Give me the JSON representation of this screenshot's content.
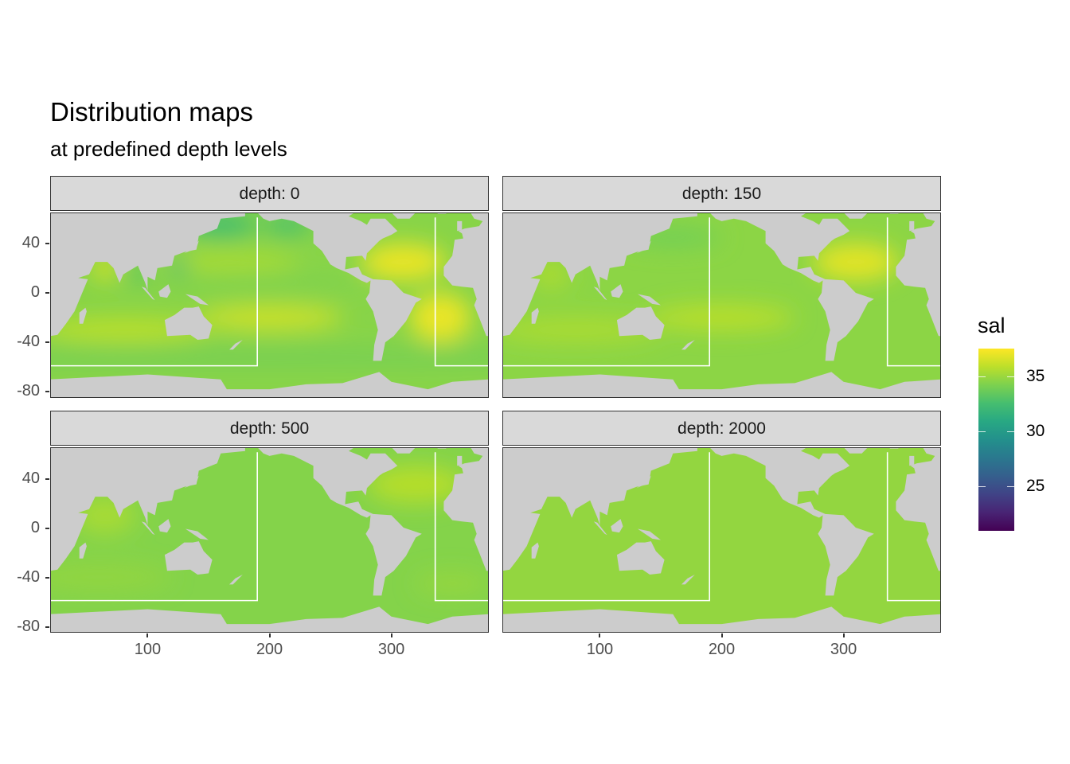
{
  "title": "Distribution maps",
  "subtitle": "at predefined depth levels",
  "chart_data": {
    "type": "heatmap",
    "title": "Distribution maps",
    "subtitle": "at predefined depth levels",
    "xlabel": "",
    "ylabel": "",
    "xlim": [
      20,
      380
    ],
    "ylim": [
      -85,
      65
    ],
    "x_ticks": [
      "100",
      "200",
      "300"
    ],
    "x_tick_values": [
      100,
      200,
      300
    ],
    "y_ticks": [
      "40",
      "0",
      "-40",
      "-80"
    ],
    "y_tick_values": [
      40,
      0,
      -40,
      -80
    ],
    "grid": false,
    "land_color": "#cccccc",
    "region_box_color": "#ffffff",
    "region_boxes": [
      {
        "lon": [
          20,
          190
        ],
        "lat": [
          -59,
          61
        ]
      },
      {
        "lon": [
          336,
          380
        ],
        "lat": [
          -59,
          61
        ]
      }
    ],
    "legend": {
      "title": "sal",
      "position": "right",
      "colormap": "viridis",
      "limits": [
        21,
        37.5
      ],
      "ticks": [
        "35",
        "30",
        "25"
      ],
      "tick_values": [
        35,
        30,
        25
      ]
    },
    "facets": [
      {
        "label": "depth: 0",
        "base_sal": 34.5,
        "fields": [
          {
            "lon": 80,
            "lat": -30,
            "sal": 35.8
          },
          {
            "lon": 200,
            "lat": -20,
            "sal": 36.3
          },
          {
            "lon": 310,
            "lat": 25,
            "sal": 37.0
          },
          {
            "lon": 340,
            "lat": -20,
            "sal": 37.0
          },
          {
            "lon": 165,
            "lat": 25,
            "sal": 35.4
          },
          {
            "lon": 65,
            "lat": 20,
            "sal": 36.5
          },
          {
            "lon": 200,
            "lat": 8,
            "sal": 34.2
          },
          {
            "lon": 160,
            "lat": 55,
            "sal": 32.5
          },
          {
            "lon": 215,
            "lat": 55,
            "sal": 32.6
          },
          {
            "lon": 125,
            "lat": 22,
            "sal": 32.0
          },
          {
            "lon": 92,
            "lat": 16,
            "sal": 32.5
          },
          {
            "lon": 200,
            "lat": -52,
            "sal": 34.0
          }
        ]
      },
      {
        "label": "depth: 150",
        "base_sal": 34.6,
        "fields": [
          {
            "lon": 310,
            "lat": 25,
            "sal": 36.8
          },
          {
            "lon": 200,
            "lat": -20,
            "sal": 35.8
          },
          {
            "lon": 80,
            "lat": -30,
            "sal": 35.4
          },
          {
            "lon": 160,
            "lat": 45,
            "sal": 33.9
          },
          {
            "lon": 60,
            "lat": 15,
            "sal": 35.4
          }
        ]
      },
      {
        "label": "depth: 500",
        "base_sal": 34.4,
        "fields": [
          {
            "lon": 320,
            "lat": 35,
            "sal": 35.7
          },
          {
            "lon": 65,
            "lat": 10,
            "sal": 35.3
          },
          {
            "lon": 60,
            "lat": -40,
            "sal": 34.8
          },
          {
            "lon": 350,
            "lat": -45,
            "sal": 34.9
          }
        ]
      },
      {
        "label": "depth: 2000",
        "base_sal": 34.8,
        "fields": []
      }
    ]
  }
}
